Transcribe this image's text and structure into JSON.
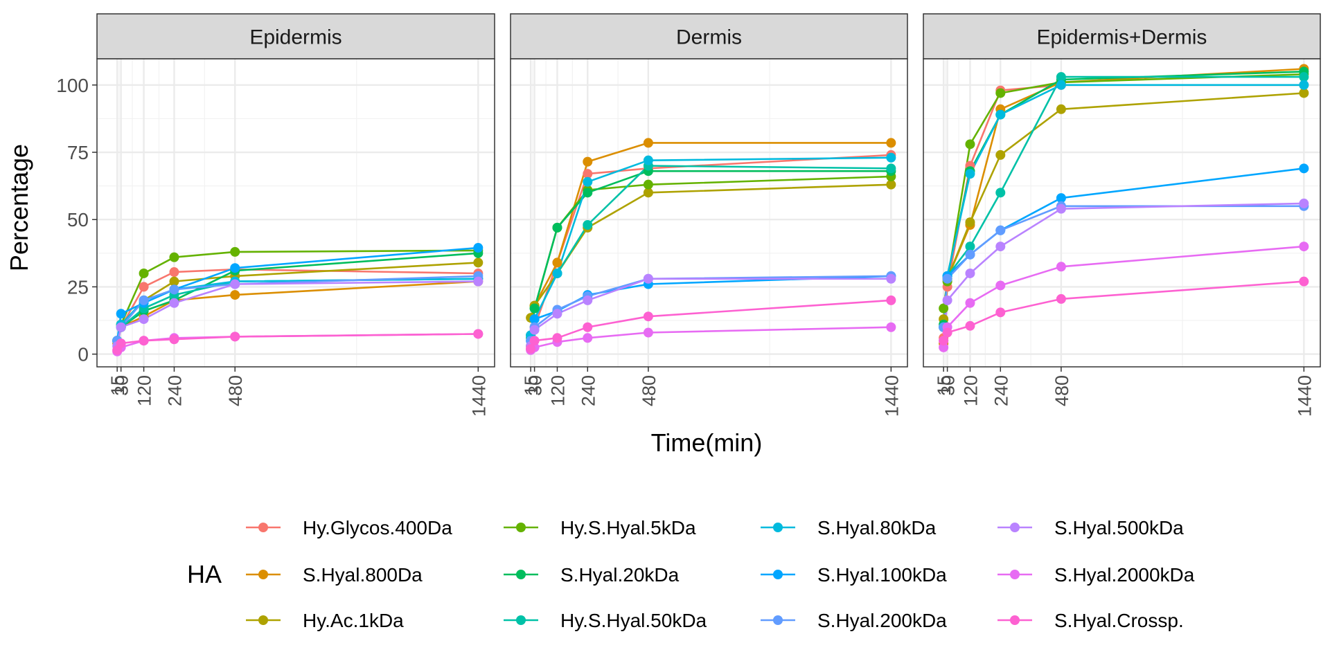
{
  "chart_data": {
    "type": "line",
    "facets": [
      "Epidermis",
      "Dermis",
      "Epidermis+Dermis"
    ],
    "xlabel": "Time(min)",
    "ylabel": "Percentage",
    "x": [
      15,
      30,
      120,
      240,
      480,
      1440
    ],
    "x_ticks": [
      "15",
      "30",
      "120",
      "240",
      "480",
      "1440"
    ],
    "xlim": [
      0,
      1440
    ],
    "ylim": [
      0,
      105
    ],
    "y_ticks": [
      "0",
      "25",
      "50",
      "75",
      "100"
    ],
    "grid": true,
    "legend_title": "HA",
    "legend_position": "bottom",
    "series": [
      {
        "name": "Hy.Glycos.400Da",
        "color": "#F8766D",
        "values": [
          [
            5,
            10,
            25,
            30.5,
            31.5,
            30
          ],
          [
            2,
            10,
            34,
            67,
            69,
            74
          ],
          [
            6,
            25,
            70,
            98,
            100,
            100
          ]
        ]
      },
      {
        "name": "S.Hyal.800Da",
        "color": "#DB8E00",
        "values": [
          [
            4,
            10,
            14,
            20,
            22,
            27
          ],
          [
            3,
            18,
            34,
            71.5,
            78.5,
            78.5
          ],
          [
            4,
            28,
            48,
            91,
            101,
            106
          ]
        ]
      },
      {
        "name": "Hy.Ac.1kDa",
        "color": "#AEA200",
        "values": [
          [
            5,
            11,
            20,
            27,
            29,
            34
          ],
          [
            13.5,
            18,
            30,
            47,
            60,
            63
          ],
          [
            13,
            28,
            49,
            74,
            91,
            97
          ]
        ]
      },
      {
        "name": "Hy.S.Hyal.5kDa",
        "color": "#64B200",
        "values": [
          [
            5,
            11,
            30,
            36,
            38,
            38.5
          ],
          [
            7,
            17,
            47,
            61,
            63,
            66
          ],
          [
            17,
            27,
            78,
            97,
            101,
            104
          ]
        ]
      },
      {
        "name": "S.Hyal.20kDa",
        "color": "#00BD5C",
        "values": [
          [
            5,
            10,
            16,
            20,
            31,
            37.5
          ],
          [
            6,
            17,
            47,
            60,
            68,
            68
          ],
          [
            11,
            29,
            68,
            89,
            102,
            105
          ]
        ]
      },
      {
        "name": "Hy.S.Hyal.50kDa",
        "color": "#00C1A7",
        "values": [
          [
            5,
            10,
            17,
            22,
            27,
            28
          ],
          [
            7,
            13,
            30,
            48,
            70,
            69
          ],
          [
            10,
            29,
            40,
            60,
            103,
            103
          ]
        ]
      },
      {
        "name": "S.Hyal.80kDa",
        "color": "#00BADE",
        "values": [
          [
            5,
            11,
            20,
            24,
            27,
            28
          ],
          [
            7,
            13,
            30,
            64,
            72,
            73
          ],
          [
            10,
            29,
            67,
            89,
            100,
            100
          ]
        ]
      },
      {
        "name": "S.Hyal.100kDa",
        "color": "#00A6FF",
        "values": [
          [
            5,
            15,
            19,
            24,
            32,
            39.5
          ],
          [
            5,
            13,
            16,
            22,
            26,
            29
          ],
          [
            10,
            29,
            37,
            46,
            58,
            69
          ]
        ]
      },
      {
        "name": "S.Hyal.200kDa",
        "color": "#619CFF",
        "values": [
          [
            5,
            10,
            20,
            24,
            26,
            29
          ],
          [
            5,
            10,
            16.5,
            21.5,
            28,
            29
          ],
          [
            10,
            28,
            37,
            46,
            55,
            55
          ]
        ]
      },
      {
        "name": "S.Hyal.500kDa",
        "color": "#B983FF",
        "values": [
          [
            3,
            10,
            13,
            19,
            26,
            27
          ],
          [
            3,
            9,
            15,
            20,
            28,
            28
          ],
          [
            5,
            20,
            30,
            40,
            54,
            56
          ]
        ]
      },
      {
        "name": "S.Hyal.2000kDa",
        "color": "#E76BF3",
        "values": [
          [
            1,
            2.5,
            5,
            6,
            6.5,
            7.5
          ],
          [
            1.5,
            2.5,
            4.5,
            6,
            8,
            10
          ],
          [
            2.5,
            10,
            19,
            25.5,
            32.5,
            40
          ]
        ]
      },
      {
        "name": "S.Hyal.Crossp.",
        "color": "#FD61D1",
        "values": [
          [
            1.5,
            4,
            5,
            5.5,
            6.5,
            7.5
          ],
          [
            2,
            5,
            6,
            10,
            14,
            20
          ],
          [
            5,
            8,
            10.5,
            15.5,
            20.5,
            27
          ]
        ]
      }
    ]
  }
}
